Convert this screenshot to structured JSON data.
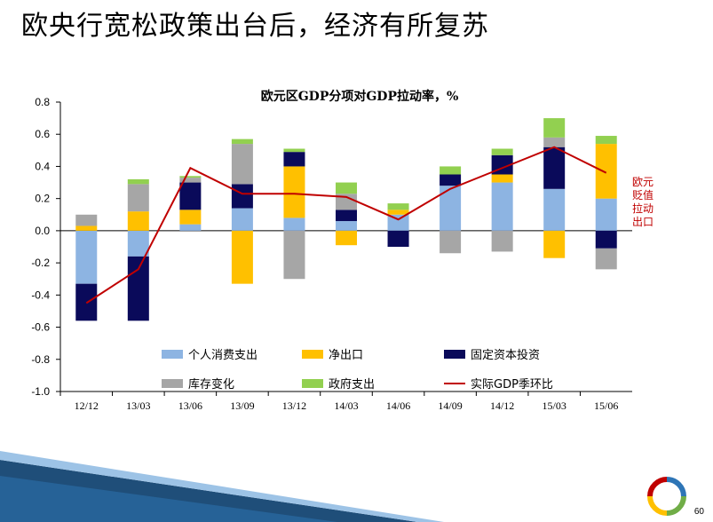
{
  "slide": {
    "title": "欧央行宽松政策出台后，经济有所复苏",
    "page_number": "60",
    "side_note": "欧元贬值拉动出口"
  },
  "colors": {
    "consumption": "#8db4e2",
    "net_exports": "#ffc000",
    "fixed_investment": "#0a0a5a",
    "inventory": "#a6a6a6",
    "government": "#92d050",
    "gdp_line": "#c00000"
  },
  "chart_data": {
    "type": "bar",
    "title": "欧元区GDP分项对GDP拉动率，%",
    "categories": [
      "12/12",
      "13/03",
      "13/06",
      "13/09",
      "13/12",
      "14/03",
      "14/06",
      "14/09",
      "14/12",
      "15/03",
      "15/06"
    ],
    "ylim": [
      -1.0,
      0.8
    ],
    "yticks": [
      "0.8",
      "0.6",
      "0.4",
      "0.2",
      "0.0",
      "-0.2",
      "-0.4",
      "-0.6",
      "-0.8",
      "-1.0"
    ],
    "series": [
      {
        "name": "个人消费支出",
        "key": "consumption",
        "values": [
          -0.33,
          -0.16,
          0.04,
          0.14,
          0.08,
          0.06,
          0.1,
          0.28,
          0.3,
          0.26,
          0.2
        ]
      },
      {
        "name": "净出口",
        "key": "net_exports",
        "values": [
          0.03,
          0.12,
          0.09,
          -0.33,
          0.32,
          -0.09,
          0.03,
          0.0,
          0.05,
          -0.17,
          0.34
        ]
      },
      {
        "name": "固定资本投资",
        "key": "fixed_investment",
        "values": [
          -0.23,
          -0.4,
          0.17,
          0.15,
          0.09,
          0.07,
          -0.1,
          0.07,
          0.12,
          0.26,
          -0.11
        ]
      },
      {
        "name": "库存变化",
        "key": "inventory",
        "values": [
          0.07,
          0.17,
          0.03,
          0.25,
          -0.3,
          0.1,
          0.0,
          -0.14,
          -0.13,
          0.06,
          -0.13
        ]
      },
      {
        "name": "政府支出",
        "key": "government",
        "values": [
          0.0,
          0.03,
          0.01,
          0.03,
          0.02,
          0.07,
          0.04,
          0.05,
          0.04,
          0.12,
          0.05
        ]
      }
    ],
    "line": {
      "name": "实际GDP季环比",
      "values": [
        -0.45,
        -0.24,
        0.39,
        0.23,
        0.23,
        0.21,
        0.07,
        0.26,
        0.39,
        0.52,
        0.36
      ]
    },
    "legend": [
      "个人消费支出",
      "净出口",
      "固定资本投资",
      "库存变化",
      "政府支出",
      "实际GDP季环比"
    ],
    "legend_placement": "bottom-inside"
  }
}
